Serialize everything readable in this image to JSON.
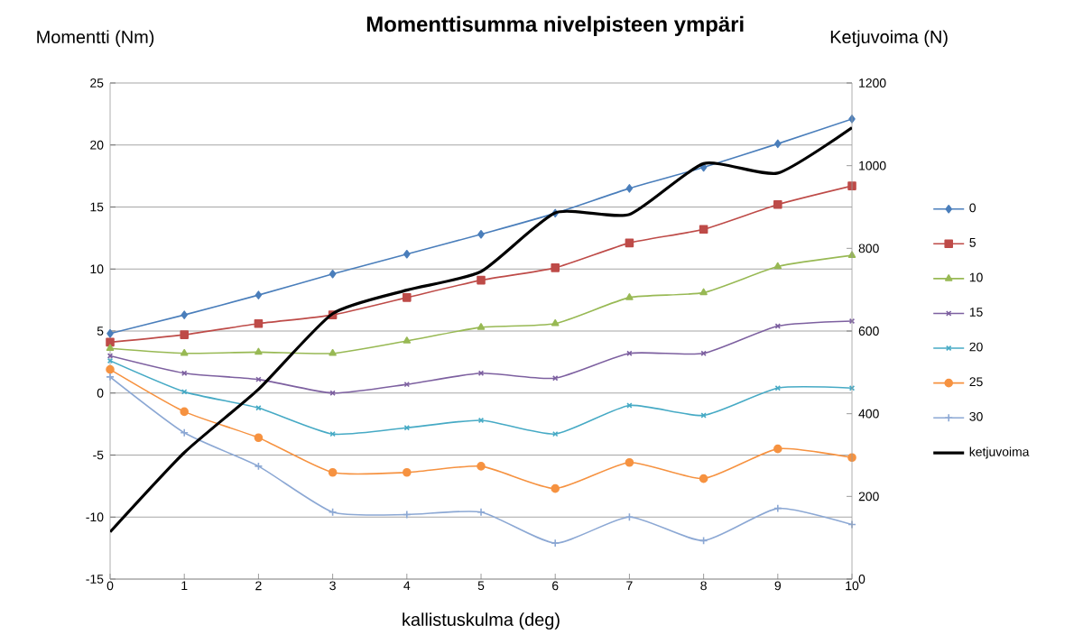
{
  "chart_data": {
    "type": "line",
    "title": "Momenttisumma nivelpisteen ympäri",
    "xlabel": "kallistuskulma (deg)",
    "ylabel": "Momentti  (Nm)",
    "y2label": "Ketjuvoima (N)",
    "x": [
      0,
      1,
      2,
      3,
      4,
      5,
      6,
      7,
      8,
      9,
      10
    ],
    "xlim": [
      0,
      10
    ],
    "xticks": [
      0,
      1,
      2,
      3,
      4,
      5,
      6,
      7,
      8,
      9,
      10
    ],
    "ylim": [
      -15,
      25
    ],
    "yticks": [
      -15,
      -10,
      -5,
      0,
      5,
      10,
      15,
      20,
      25
    ],
    "y2lim": [
      0,
      1200
    ],
    "y2ticks": [
      0,
      200,
      400,
      600,
      800,
      1000,
      1200
    ],
    "grid": "y",
    "legend": "right",
    "series": [
      {
        "name": "0",
        "color": "#4a7ebb",
        "marker": "diamond",
        "values": [
          4.8,
          6.3,
          7.9,
          9.6,
          11.2,
          12.8,
          14.5,
          16.5,
          18.2,
          20.1,
          22.1
        ]
      },
      {
        "name": "5",
        "color": "#be4b48",
        "marker": "square",
        "values": [
          4.1,
          4.7,
          5.6,
          6.3,
          7.7,
          9.1,
          10.1,
          12.1,
          13.2,
          15.2,
          16.7
        ]
      },
      {
        "name": "10",
        "color": "#98b954",
        "marker": "triangle",
        "values": [
          3.6,
          3.2,
          3.3,
          3.2,
          4.2,
          5.3,
          5.6,
          7.7,
          8.1,
          10.2,
          11.1
        ]
      },
      {
        "name": "15",
        "color": "#7d60a0",
        "marker": "cross",
        "values": [
          3.0,
          1.6,
          1.1,
          0.0,
          0.7,
          1.6,
          1.2,
          3.2,
          3.2,
          5.4,
          5.8
        ]
      },
      {
        "name": "20",
        "color": "#46aac5",
        "marker": "cross",
        "values": [
          2.6,
          0.1,
          -1.2,
          -3.3,
          -2.8,
          -2.2,
          -3.3,
          -1.0,
          -1.8,
          0.4,
          0.4
        ]
      },
      {
        "name": "25",
        "color": "#f69240",
        "marker": "circle",
        "values": [
          1.9,
          -1.5,
          -3.6,
          -6.4,
          -6.4,
          -5.9,
          -7.7,
          -5.6,
          -6.9,
          -4.5,
          -5.2
        ]
      },
      {
        "name": "30",
        "color": "#8ca8d4",
        "marker": "plus",
        "values": [
          1.3,
          -3.2,
          -5.9,
          -9.6,
          -9.8,
          -9.6,
          -12.1,
          -10.0,
          -11.9,
          -9.3,
          -10.6
        ]
      },
      {
        "name": "ketjuvoima",
        "color": "#000000",
        "axis": "y2",
        "marker": "none",
        "values": [
          114,
          306,
          459,
          642,
          699,
          744,
          886,
          882,
          1005,
          982,
          1092
        ]
      }
    ]
  }
}
